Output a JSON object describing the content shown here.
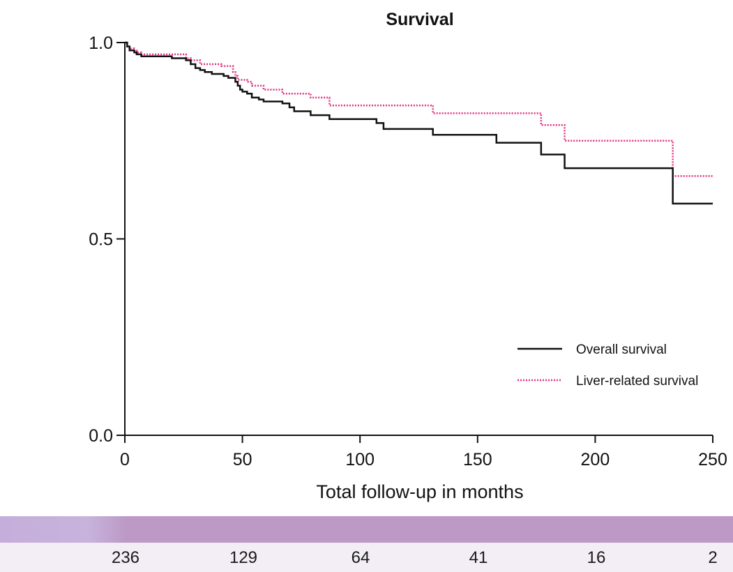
{
  "chart_data": {
    "type": "line",
    "title": "Survival",
    "xlabel": "Total follow-up in months",
    "ylabel": "",
    "xlim": [
      0,
      250
    ],
    "ylim": [
      0.0,
      1.0
    ],
    "x_ticks": [
      0,
      50,
      100,
      150,
      200,
      250
    ],
    "x_tick_labels": [
      "0",
      "50",
      "100",
      "150",
      "200",
      "250"
    ],
    "y_ticks": [
      0.0,
      0.5,
      1.0
    ],
    "y_tick_labels": [
      "0.0",
      "0.5",
      "1.0"
    ],
    "legend_position": "bottom-right",
    "series": [
      {
        "name": "Overall survival",
        "color": "#111111",
        "style": "solid",
        "steps": [
          [
            0,
            1.0
          ],
          [
            1,
            0.99
          ],
          [
            2,
            0.98
          ],
          [
            4,
            0.975
          ],
          [
            5,
            0.97
          ],
          [
            7,
            0.965
          ],
          [
            20,
            0.96
          ],
          [
            26,
            0.955
          ],
          [
            28,
            0.945
          ],
          [
            30,
            0.935
          ],
          [
            32,
            0.93
          ],
          [
            34,
            0.925
          ],
          [
            37,
            0.92
          ],
          [
            42,
            0.915
          ],
          [
            44,
            0.91
          ],
          [
            47,
            0.9
          ],
          [
            48,
            0.89
          ],
          [
            49,
            0.88
          ],
          [
            50,
            0.875
          ],
          [
            52,
            0.87
          ],
          [
            54,
            0.86
          ],
          [
            57,
            0.855
          ],
          [
            59,
            0.85
          ],
          [
            67,
            0.845
          ],
          [
            70,
            0.835
          ],
          [
            72,
            0.825
          ],
          [
            79,
            0.815
          ],
          [
            87,
            0.805
          ],
          [
            107,
            0.795
          ],
          [
            110,
            0.78
          ],
          [
            131,
            0.765
          ],
          [
            158,
            0.745
          ],
          [
            177,
            0.715
          ],
          [
            187,
            0.68
          ],
          [
            233,
            0.59
          ],
          [
            250,
            0.59
          ]
        ]
      },
      {
        "name": "Liver-related survival",
        "color": "#e0317e",
        "style": "dotted",
        "steps": [
          [
            0,
            1.0
          ],
          [
            1,
            0.99
          ],
          [
            2,
            0.985
          ],
          [
            4,
            0.98
          ],
          [
            5,
            0.975
          ],
          [
            7,
            0.97
          ],
          [
            26,
            0.96
          ],
          [
            28,
            0.955
          ],
          [
            32,
            0.945
          ],
          [
            41,
            0.94
          ],
          [
            46,
            0.925
          ],
          [
            47,
            0.915
          ],
          [
            48,
            0.905
          ],
          [
            52,
            0.9
          ],
          [
            54,
            0.89
          ],
          [
            59,
            0.88
          ],
          [
            67,
            0.87
          ],
          [
            79,
            0.86
          ],
          [
            87,
            0.84
          ],
          [
            131,
            0.82
          ],
          [
            177,
            0.79
          ],
          [
            187,
            0.75
          ],
          [
            233,
            0.66
          ],
          [
            250,
            0.66
          ]
        ]
      }
    ],
    "risk_table": {
      "values": [
        "236",
        "129",
        "64",
        "41",
        "16",
        "2"
      ]
    }
  }
}
